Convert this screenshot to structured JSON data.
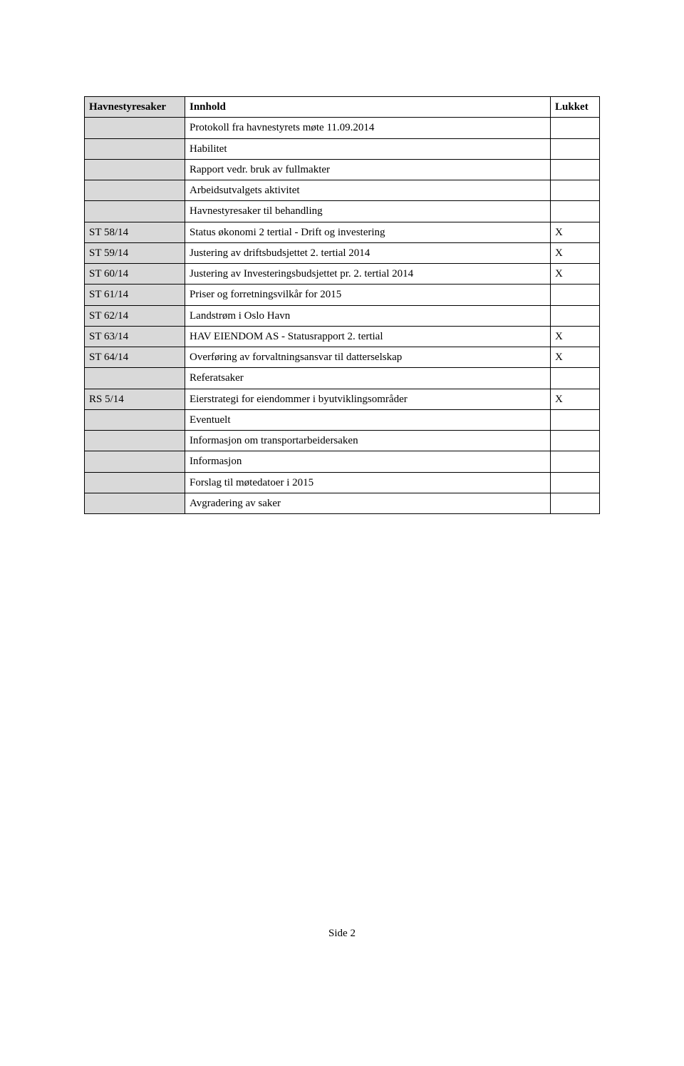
{
  "headers": {
    "col1": "Havnestyresaker",
    "col2": "Innhold",
    "col3": "Lukket"
  },
  "rows": [
    {
      "id": "",
      "content": "Protokoll fra havnestyrets møte 11.09.2014",
      "lukket": ""
    },
    {
      "id": "",
      "content": "Habilitet",
      "lukket": ""
    },
    {
      "id": "",
      "content": "Rapport vedr. bruk av fullmakter",
      "lukket": ""
    },
    {
      "id": "",
      "content": "Arbeidsutvalgets aktivitet",
      "lukket": ""
    },
    {
      "id": "",
      "content": "Havnestyresaker til behandling",
      "lukket": ""
    },
    {
      "id": "ST 58/14",
      "content": "Status økonomi 2 tertial - Drift og investering",
      "lukket": "X"
    },
    {
      "id": "ST 59/14",
      "content": "Justering av driftsbudsjettet 2. tertial 2014",
      "lukket": "X"
    },
    {
      "id": "ST 60/14",
      "content": "Justering av Investeringsbudsjettet pr. 2. tertial 2014",
      "lukket": "X"
    },
    {
      "id": "ST 61/14",
      "content": "Priser og forretningsvilkår for 2015",
      "lukket": ""
    },
    {
      "id": "ST 62/14",
      "content": "Landstrøm i Oslo Havn",
      "lukket": ""
    },
    {
      "id": "ST 63/14",
      "content": "HAV EIENDOM AS - Statusrapport 2. tertial",
      "lukket": "X"
    },
    {
      "id": "ST 64/14",
      "content": "Overføring av forvaltningsansvar til datterselskap",
      "lukket": "X"
    },
    {
      "id": "",
      "content": "Referatsaker",
      "lukket": ""
    },
    {
      "id": "RS 5/14",
      "content": "Eierstrategi for eiendommer i byutviklingsområder",
      "lukket": "X"
    },
    {
      "id": "",
      "content": "Eventuelt",
      "lukket": ""
    },
    {
      "id": "",
      "content": "Informasjon om transportarbeidersaken",
      "lukket": ""
    },
    {
      "id": "",
      "content": "Informasjon",
      "lukket": ""
    },
    {
      "id": "",
      "content": "Forslag til møtedatoer i 2015",
      "lukket": ""
    },
    {
      "id": "",
      "content": "Avgradering av saker",
      "lukket": ""
    }
  ],
  "footer": "Side 2"
}
